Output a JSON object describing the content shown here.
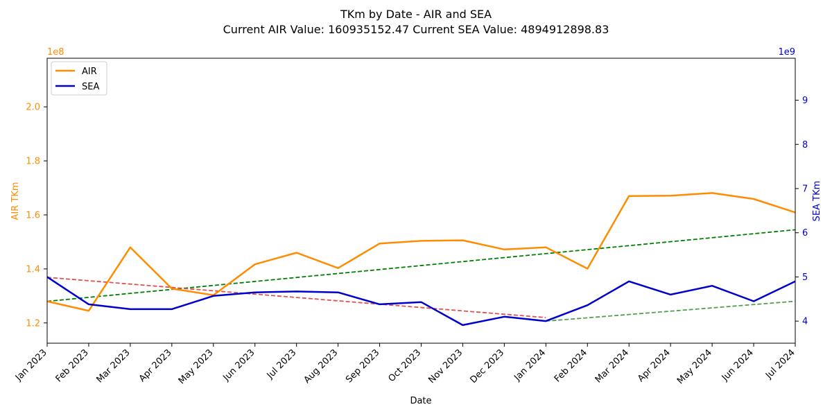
{
  "chart_data": {
    "type": "line",
    "title": "TKm by Date - AIR and SEA",
    "subtitle": "Current AIR Value: 160935152.47 Current SEA Value: 4894912898.83",
    "xlabel": "Date",
    "ylabel_left": "AIR TKm",
    "ylabel_right": "SEA TKm",
    "left_multiplier_label": "1e8",
    "right_multiplier_label": "1e9",
    "left_axis_color": "#ff8c00",
    "right_axis_color": "#0000cd",
    "categories": [
      "Jan 2023",
      "Feb 2023",
      "Mar 2023",
      "Apr 2023",
      "May 2023",
      "Jun 2023",
      "Jul 2023",
      "Aug 2023",
      "Sep 2023",
      "Oct 2023",
      "Nov 2023",
      "Dec 2023",
      "Jan 2024",
      "Feb 2024",
      "Mar 2024",
      "Apr 2024",
      "May 2024",
      "Jun 2024",
      "Jul 2024"
    ],
    "left_ylim": [
      1.125,
      2.18
    ],
    "right_ylim": [
      3.5,
      9.95
    ],
    "left_ticks": [
      1.2,
      1.4,
      1.6,
      1.8,
      2.0
    ],
    "left_tick_labels": [
      "1.2",
      "1.4",
      "1.6",
      "1.8",
      "2.0"
    ],
    "right_ticks": [
      4,
      5,
      6,
      7,
      8,
      9
    ],
    "right_tick_labels": [
      "4",
      "5",
      "6",
      "7",
      "8",
      "9"
    ],
    "series": [
      {
        "name": "AIR",
        "axis": "left",
        "color": "#ff8c00",
        "values": [
          1.28,
          1.245,
          1.48,
          1.327,
          1.303,
          1.417,
          1.46,
          1.403,
          1.494,
          1.504,
          1.506,
          1.472,
          1.48,
          1.401,
          1.67,
          1.671,
          1.681,
          1.659,
          1.609
        ]
      },
      {
        "name": "SEA",
        "axis": "right",
        "color": "#0000cd",
        "values": [
          5.0,
          4.38,
          4.27,
          4.27,
          4.57,
          4.65,
          4.67,
          4.65,
          4.38,
          4.43,
          3.91,
          4.1,
          4.0,
          4.36,
          4.9,
          4.6,
          4.8,
          4.45,
          4.9
        ]
      }
    ],
    "trendlines": [
      {
        "axis": "left",
        "color": "#008000",
        "style": "dashed",
        "x_start": 0,
        "x_end": 18,
        "y_start": 1.28,
        "y_end": 1.545
      },
      {
        "axis": "right",
        "color": "#e05050",
        "style": "dashed",
        "x_start": 0,
        "x_end": 12,
        "y_start": 4.99,
        "y_end": 4.08
      },
      {
        "axis": "right",
        "color": "#50a050",
        "style": "dashed",
        "x_start": 12,
        "x_end": 18,
        "y_start": 4.0,
        "y_end": 4.45
      }
    ],
    "legend": {
      "placement": "top-left",
      "entries": [
        "AIR",
        "SEA"
      ]
    },
    "grid": false
  }
}
